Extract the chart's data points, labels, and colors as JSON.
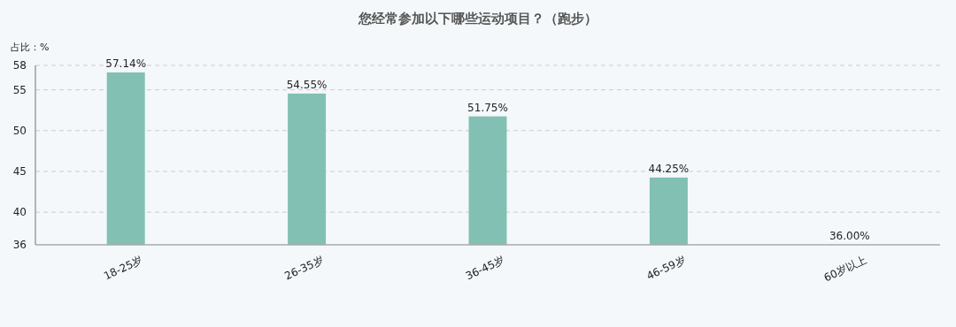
{
  "chart_data": {
    "type": "bar",
    "title": "您经常参加以下哪些运动项目？（跑步）",
    "ylabel": "占比：%",
    "categories": [
      "18-25岁",
      "26-35岁",
      "36-45岁",
      "46-59岁",
      "60岁以上"
    ],
    "values": [
      57.14,
      54.55,
      51.75,
      44.25,
      36.0
    ],
    "value_labels": [
      "57.14%",
      "54.55%",
      "51.75%",
      "44.25%",
      "36.00%"
    ],
    "color": "#83c0b4",
    "ylim": [
      36,
      58
    ],
    "yticks": [
      36,
      40,
      45,
      50,
      55,
      58
    ],
    "grid": "y"
  }
}
